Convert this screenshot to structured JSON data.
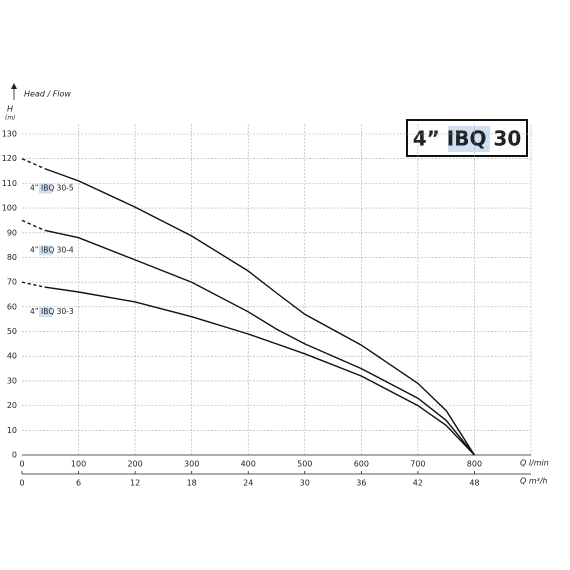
{
  "chart_data": {
    "type": "line",
    "title": "4” IBQ 30",
    "y_axis_title": "Head / Flow",
    "y_label": "H",
    "y_unit": "(m)",
    "x_label": "Q l/min",
    "x2_label": "Q m³/h",
    "xlim": [
      0,
      900
    ],
    "xticks": [
      0,
      100,
      200,
      300,
      400,
      500,
      600,
      700,
      800
    ],
    "x2lim": [
      0,
      54
    ],
    "x2ticks": [
      0,
      6,
      12,
      18,
      24,
      30,
      36,
      42,
      48
    ],
    "ylim": [
      0,
      130
    ],
    "yticks": [
      0,
      10,
      20,
      30,
      40,
      50,
      60,
      70,
      80,
      90,
      100,
      110,
      120,
      130
    ],
    "grid": true,
    "x": [
      0,
      40,
      100,
      200,
      300,
      400,
      450,
      500,
      600,
      700,
      750,
      800
    ],
    "series": [
      {
        "name": "4” IBQ 30-5",
        "color": "#111111",
        "values": [
          120,
          116,
          111,
          100.4,
          88.7,
          74.5,
          65.6,
          57,
          44.5,
          29,
          18,
          0
        ]
      },
      {
        "name": "4” IBQ 30-4",
        "color": "#111111",
        "values": [
          95,
          91,
          88,
          79,
          70,
          58,
          51,
          45,
          35,
          23,
          14,
          0
        ]
      },
      {
        "name": "4” IBQ 30-3",
        "color": "#111111",
        "values": [
          70,
          68,
          66,
          62,
          56,
          49,
          45,
          41,
          32,
          20,
          12,
          0
        ]
      }
    ]
  }
}
